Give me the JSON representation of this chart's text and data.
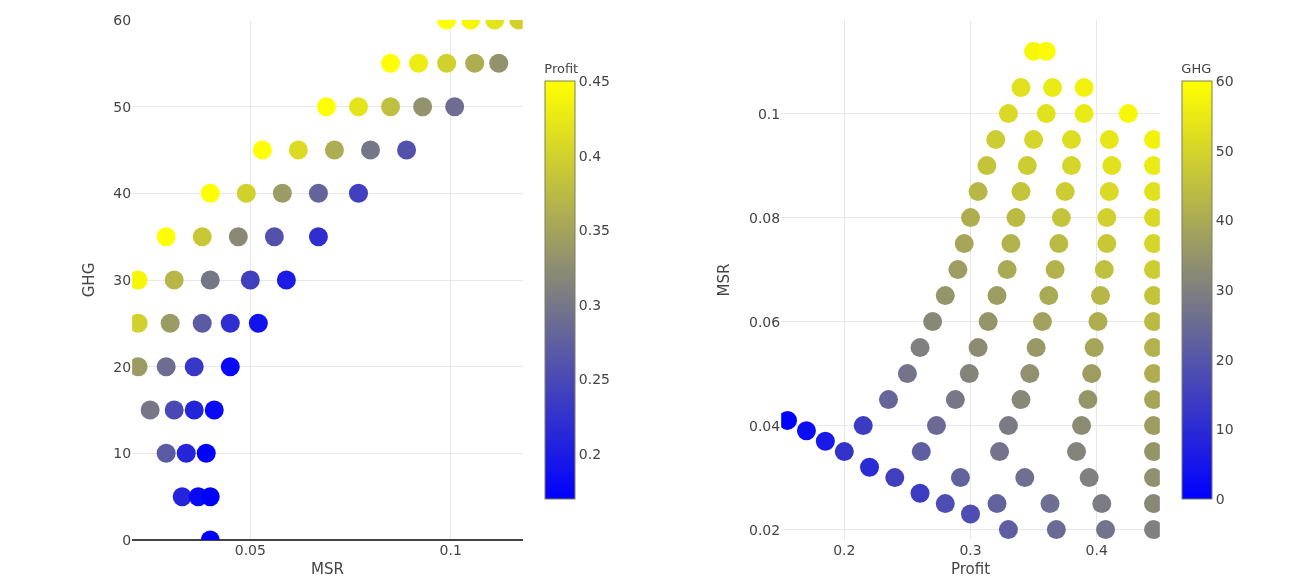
{
  "chart_data": [
    {
      "type": "scatter",
      "xlabel": "MSR",
      "ylabel": "GHG",
      "clabel": "Profit",
      "marker": "circle",
      "grid": true,
      "xlim": [
        0.0205,
        0.118
      ],
      "ylim": [
        0,
        60
      ],
      "xticks": [
        0.05,
        0.1
      ],
      "yticks": [
        0,
        10,
        20,
        30,
        40,
        50,
        60
      ],
      "clim": [
        0.17,
        0.45
      ],
      "cticks": [
        0.2,
        0.25,
        0.3,
        0.35,
        0.4,
        0.45
      ],
      "x": [
        0.099,
        0.105,
        0.111,
        0.117,
        0.085,
        0.092,
        0.099,
        0.106,
        0.112,
        0.069,
        0.077,
        0.085,
        0.093,
        0.101,
        0.053,
        0.062,
        0.071,
        0.08,
        0.089,
        0.04,
        0.049,
        0.058,
        0.067,
        0.077,
        0.029,
        0.038,
        0.047,
        0.056,
        0.067,
        0.022,
        0.031,
        0.04,
        0.05,
        0.059,
        0.022,
        0.03,
        0.038,
        0.045,
        0.052,
        0.022,
        0.029,
        0.036,
        0.045,
        0.025,
        0.031,
        0.036,
        0.041,
        0.029,
        0.034,
        0.039,
        0.033,
        0.037,
        0.04,
        0.04
      ],
      "values": [
        60,
        60,
        60,
        60,
        55,
        55,
        55,
        55,
        55,
        50,
        50,
        50,
        50,
        50,
        45,
        45,
        45,
        45,
        45,
        40,
        40,
        40,
        40,
        40,
        35,
        35,
        35,
        35,
        35,
        30,
        30,
        30,
        30,
        30,
        25,
        25,
        25,
        25,
        25,
        20,
        20,
        20,
        20,
        15,
        15,
        15,
        15,
        10,
        10,
        10,
        5,
        5,
        5,
        0
      ],
      "cvalues": [
        0.45,
        0.44,
        0.42,
        0.4,
        0.45,
        0.43,
        0.4,
        0.36,
        0.33,
        0.45,
        0.42,
        0.38,
        0.33,
        0.29,
        0.45,
        0.41,
        0.36,
        0.3,
        0.26,
        0.45,
        0.4,
        0.34,
        0.28,
        0.24,
        0.45,
        0.39,
        0.32,
        0.26,
        0.22,
        0.44,
        0.37,
        0.3,
        0.24,
        0.2,
        0.4,
        0.34,
        0.27,
        0.22,
        0.19,
        0.34,
        0.29,
        0.23,
        0.18,
        0.3,
        0.25,
        0.21,
        0.18,
        0.27,
        0.21,
        0.17,
        0.21,
        0.18,
        0.17,
        0.17
      ]
    },
    {
      "type": "scatter",
      "xlabel": "Profit",
      "ylabel": "MSR",
      "clabel": "GHG",
      "marker": "circle",
      "grid": true,
      "xlim": [
        0.15,
        0.45
      ],
      "ylim": [
        0.018,
        0.118
      ],
      "xticks": [
        0.2,
        0.3,
        0.4
      ],
      "yticks": [
        0.02,
        0.04,
        0.06,
        0.08,
        0.1
      ],
      "clim": [
        0,
        60
      ],
      "cticks": [
        0,
        10,
        20,
        30,
        40,
        50,
        60
      ],
      "x": [
        0.35,
        0.36,
        0.34,
        0.365,
        0.39,
        0.33,
        0.36,
        0.39,
        0.425,
        0.32,
        0.35,
        0.38,
        0.41,
        0.445,
        0.313,
        0.345,
        0.38,
        0.412,
        0.445,
        0.306,
        0.34,
        0.375,
        0.41,
        0.445,
        0.3,
        0.336,
        0.372,
        0.408,
        0.445,
        0.295,
        0.332,
        0.37,
        0.408,
        0.445,
        0.29,
        0.329,
        0.367,
        0.406,
        0.445,
        0.28,
        0.321,
        0.362,
        0.403,
        0.445,
        0.27,
        0.314,
        0.357,
        0.401,
        0.445,
        0.26,
        0.306,
        0.352,
        0.398,
        0.445,
        0.25,
        0.299,
        0.347,
        0.396,
        0.445,
        0.235,
        0.288,
        0.34,
        0.393,
        0.445,
        0.215,
        0.273,
        0.33,
        0.388,
        0.445,
        0.2,
        0.261,
        0.323,
        0.384,
        0.445,
        0.24,
        0.292,
        0.343,
        0.394,
        0.445,
        0.28,
        0.321,
        0.363,
        0.404,
        0.445,
        0.33,
        0.368,
        0.407,
        0.445,
        0.155,
        0.17,
        0.185,
        0.22,
        0.26,
        0.3
      ],
      "values": [
        0.112,
        0.112,
        0.105,
        0.105,
        0.105,
        0.1,
        0.1,
        0.1,
        0.1,
        0.095,
        0.095,
        0.095,
        0.095,
        0.095,
        0.09,
        0.09,
        0.09,
        0.09,
        0.09,
        0.085,
        0.085,
        0.085,
        0.085,
        0.085,
        0.08,
        0.08,
        0.08,
        0.08,
        0.08,
        0.075,
        0.075,
        0.075,
        0.075,
        0.075,
        0.07,
        0.07,
        0.07,
        0.07,
        0.07,
        0.065,
        0.065,
        0.065,
        0.065,
        0.065,
        0.06,
        0.06,
        0.06,
        0.06,
        0.06,
        0.055,
        0.055,
        0.055,
        0.055,
        0.055,
        0.05,
        0.05,
        0.05,
        0.05,
        0.05,
        0.045,
        0.045,
        0.045,
        0.045,
        0.045,
        0.04,
        0.04,
        0.04,
        0.04,
        0.04,
        0.035,
        0.035,
        0.035,
        0.035,
        0.035,
        0.03,
        0.03,
        0.03,
        0.03,
        0.03,
        0.025,
        0.025,
        0.025,
        0.025,
        0.025,
        0.02,
        0.02,
        0.02,
        0.02,
        0.041,
        0.039,
        0.037,
        0.032,
        0.027,
        0.023
      ],
      "cvalues": [
        58,
        59,
        53,
        55,
        57,
        51,
        53,
        55,
        58,
        48,
        50,
        52,
        54,
        57,
        46,
        48,
        50,
        53,
        55,
        43,
        46,
        48,
        51,
        53,
        41,
        44,
        46,
        49,
        51,
        39,
        42,
        44,
        47,
        50,
        37,
        40,
        42,
        45,
        48,
        35,
        37,
        40,
        43,
        46,
        32,
        35,
        38,
        41,
        44,
        30,
        33,
        36,
        39,
        42,
        27,
        31,
        34,
        37,
        41,
        24,
        28,
        32,
        35,
        39,
        14,
        25,
        29,
        33,
        37,
        12,
        22,
        27,
        31,
        35,
        15,
        23,
        26,
        30,
        34,
        18,
        23,
        26,
        29,
        32,
        22,
        25,
        27,
        30,
        0,
        3,
        6,
        10,
        14,
        18
      ]
    }
  ]
}
